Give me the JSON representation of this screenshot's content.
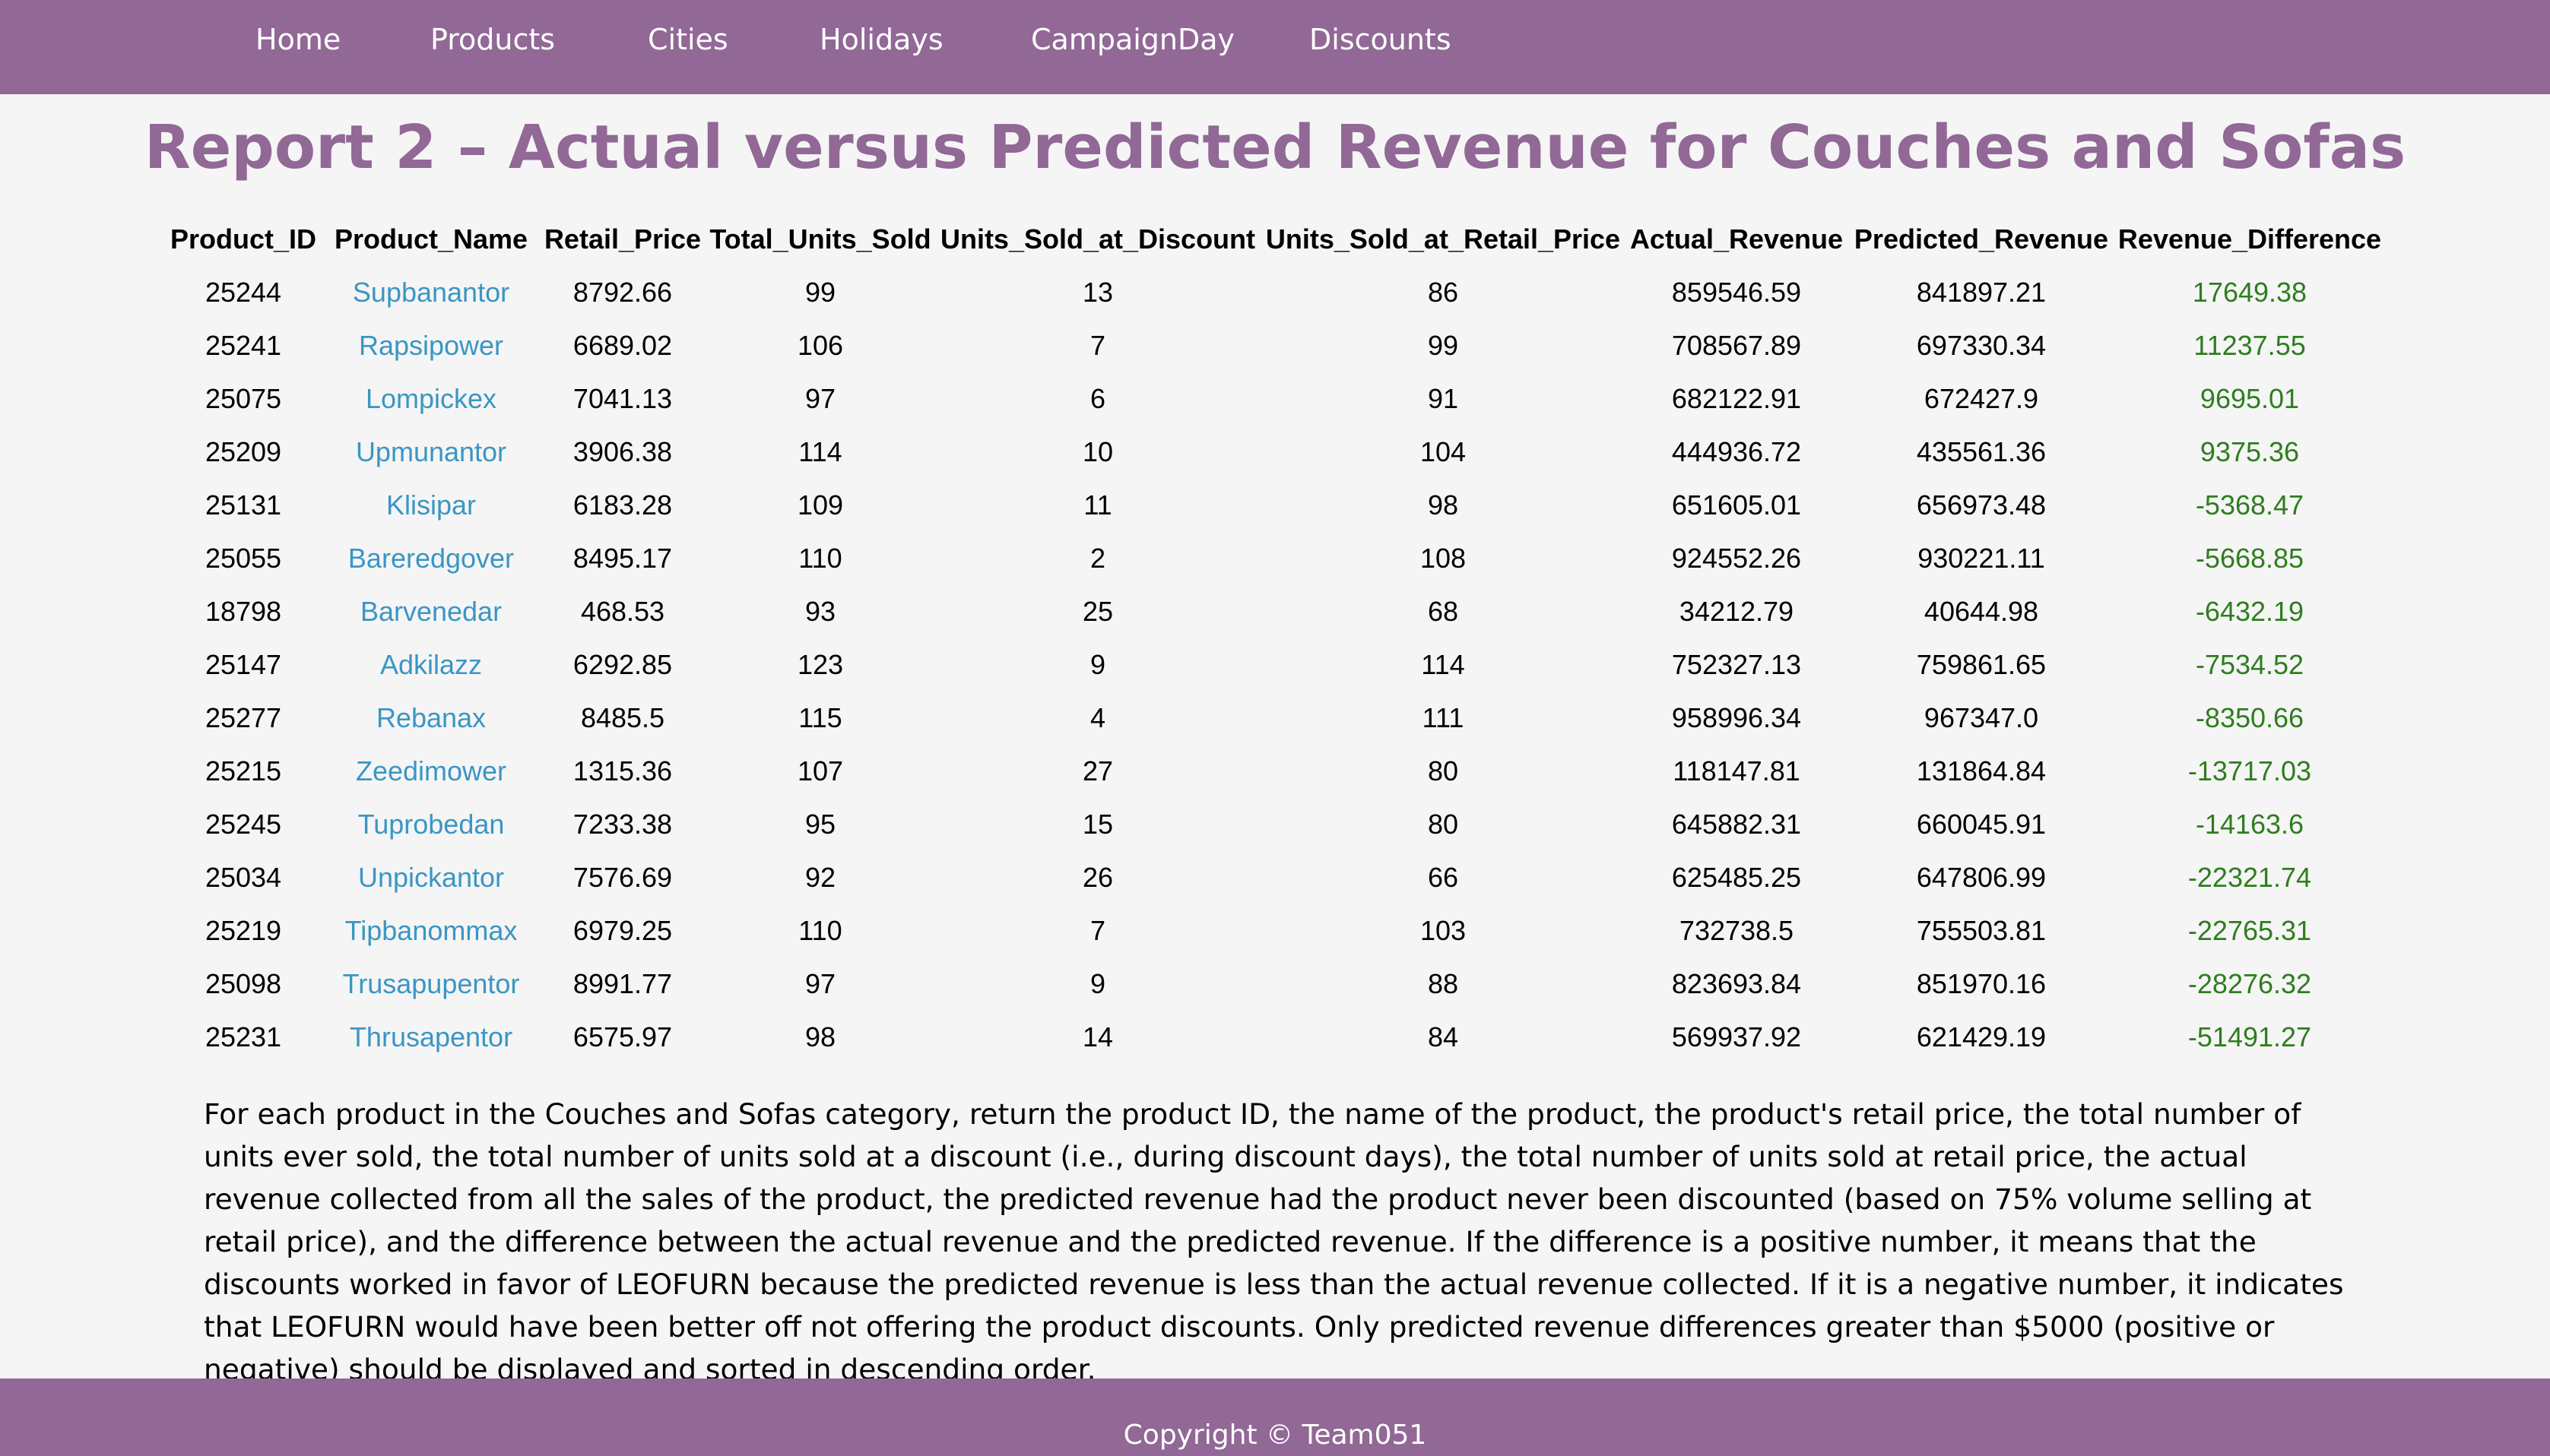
{
  "nav": {
    "items": [
      "Home",
      "Products",
      "Cities",
      "Holidays",
      "CampaignDay",
      "Discounts"
    ]
  },
  "page": {
    "title": "Report 2 – Actual versus Predicted Revenue for Couches and Sofas"
  },
  "table": {
    "columns": [
      "Product_ID",
      "Product_Name",
      "Retail_Price",
      "Total_Units_Sold",
      "Units_Sold_at_Discount",
      "Units_Sold_at_Retail_Price",
      "Actual_Revenue",
      "Predicted_Revenue",
      "Revenue_Difference"
    ],
    "rows": [
      [
        "25244",
        "Supbanantor",
        "8792.66",
        "99",
        "13",
        "86",
        "859546.59",
        "841897.21",
        "17649.38"
      ],
      [
        "25241",
        "Rapsipower",
        "6689.02",
        "106",
        "7",
        "99",
        "708567.89",
        "697330.34",
        "11237.55"
      ],
      [
        "25075",
        "Lompickex",
        "7041.13",
        "97",
        "6",
        "91",
        "682122.91",
        "672427.9",
        "9695.01"
      ],
      [
        "25209",
        "Upmunantor",
        "3906.38",
        "114",
        "10",
        "104",
        "444936.72",
        "435561.36",
        "9375.36"
      ],
      [
        "25131",
        "Klisipar",
        "6183.28",
        "109",
        "11",
        "98",
        "651605.01",
        "656973.48",
        "-5368.47"
      ],
      [
        "25055",
        "Bareredgover",
        "8495.17",
        "110",
        "2",
        "108",
        "924552.26",
        "930221.11",
        "-5668.85"
      ],
      [
        "18798",
        "Barvenedar",
        "468.53",
        "93",
        "25",
        "68",
        "34212.79",
        "40644.98",
        "-6432.19"
      ],
      [
        "25147",
        "Adkilazz",
        "6292.85",
        "123",
        "9",
        "114",
        "752327.13",
        "759861.65",
        "-7534.52"
      ],
      [
        "25277",
        "Rebanax",
        "8485.5",
        "115",
        "4",
        "111",
        "958996.34",
        "967347.0",
        "-8350.66"
      ],
      [
        "25215",
        "Zeedimower",
        "1315.36",
        "107",
        "27",
        "80",
        "118147.81",
        "131864.84",
        "-13717.03"
      ],
      [
        "25245",
        "Tuprobedan",
        "7233.38",
        "95",
        "15",
        "80",
        "645882.31",
        "660045.91",
        "-14163.6"
      ],
      [
        "25034",
        "Unpickantor",
        "7576.69",
        "92",
        "26",
        "66",
        "625485.25",
        "647806.99",
        "-22321.74"
      ],
      [
        "25219",
        "Tipbanommax",
        "6979.25",
        "110",
        "7",
        "103",
        "732738.5",
        "755503.81",
        "-22765.31"
      ],
      [
        "25098",
        "Trusapupentor",
        "8991.77",
        "97",
        "9",
        "88",
        "823693.84",
        "851970.16",
        "-28276.32"
      ],
      [
        "25231",
        "Thrusapentor",
        "6575.97",
        "98",
        "14",
        "84",
        "569937.92",
        "621429.19",
        "-51491.27"
      ]
    ]
  },
  "description": "For each product in the Couches and Sofas category, return the product ID, the name of the product, the product's retail price, the total number of units ever sold, the total number of units sold at a discount (i.e., during discount days), the total number of units sold at retail price, the actual revenue collected from all the sales of the product, the predicted revenue had the product never been discounted (based on 75% volume selling at retail price), and the difference between the actual revenue and the predicted revenue. If the difference is a positive number, it means that the discounts worked in favor of LEOFURN because the predicted revenue is less than the actual revenue collected. If it is a negative number, it indicates that LEOFURN would have been better off not offering the product discounts. Only predicted revenue differences greater than $5000 (positive or negative) should be displayed and sorted in descending order.",
  "footer": {
    "text": "Copyright © Team051"
  },
  "colors": {
    "brand": "#916896",
    "link": "#3a96c4",
    "difference": "#2e7d1e"
  }
}
